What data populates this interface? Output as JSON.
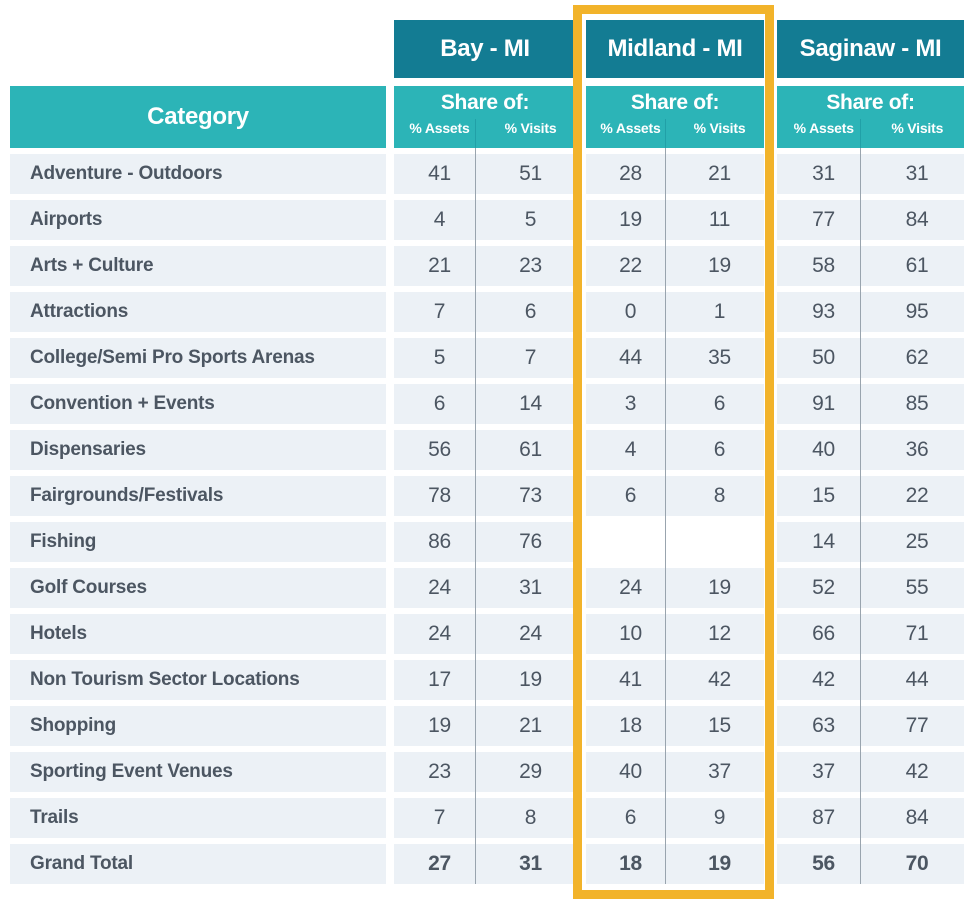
{
  "table": {
    "category_header": "Category",
    "regions": [
      {
        "name": "Bay - MI",
        "share_label": "Share of:",
        "sub_columns": [
          "% Assets",
          "% Visits"
        ]
      },
      {
        "name": "Midland - MI",
        "share_label": "Share of:",
        "sub_columns": [
          "% Assets",
          "% Visits"
        ]
      },
      {
        "name": "Saginaw - MI",
        "share_label": "Share of:",
        "sub_columns": [
          "% Assets",
          "% Visits"
        ]
      }
    ],
    "rows": [
      {
        "category": "Adventure - Outdoors",
        "values": [
          41,
          51,
          28,
          21,
          31,
          31
        ]
      },
      {
        "category": "Airports",
        "values": [
          4,
          5,
          19,
          11,
          77,
          84
        ]
      },
      {
        "category": "Arts + Culture",
        "values": [
          21,
          23,
          22,
          19,
          58,
          61
        ]
      },
      {
        "category": "Attractions",
        "values": [
          7,
          6,
          0,
          1,
          93,
          95
        ]
      },
      {
        "category": "College/Semi Pro Sports Arenas",
        "values": [
          5,
          7,
          44,
          35,
          50,
          62
        ]
      },
      {
        "category": "Convention + Events",
        "values": [
          6,
          14,
          3,
          6,
          91,
          85
        ]
      },
      {
        "category": "Dispensaries",
        "values": [
          56,
          61,
          4,
          6,
          40,
          36
        ]
      },
      {
        "category": "Fairgrounds/Festivals",
        "values": [
          78,
          73,
          6,
          8,
          15,
          22
        ]
      },
      {
        "category": "Fishing",
        "values": [
          86,
          76,
          null,
          null,
          14,
          25
        ]
      },
      {
        "category": "Golf Courses",
        "values": [
          24,
          31,
          24,
          19,
          52,
          55
        ]
      },
      {
        "category": "Hotels",
        "values": [
          24,
          24,
          10,
          12,
          66,
          71
        ]
      },
      {
        "category": "Non Tourism Sector Locations",
        "values": [
          17,
          19,
          41,
          42,
          42,
          44
        ]
      },
      {
        "category": "Shopping",
        "values": [
          19,
          21,
          18,
          15,
          63,
          77
        ]
      },
      {
        "category": "Sporting Event Venues",
        "values": [
          23,
          29,
          40,
          37,
          37,
          42
        ]
      },
      {
        "category": "Trails",
        "values": [
          7,
          8,
          6,
          9,
          87,
          84
        ]
      }
    ],
    "grand_total": {
      "category": "Grand Total",
      "values": [
        27,
        31,
        18,
        19,
        56,
        70
      ]
    }
  },
  "highlight": {
    "highlighted_region": "Midland - MI",
    "border_color": "#F2B32A"
  },
  "colors": {
    "region_header_bg": "#137C93",
    "subheader_bg": "#2CB4B7",
    "row_bg": "#ECF1F6",
    "text": "#4C5662",
    "divider": "#99A4AE",
    "highlight_border": "#F2B32A"
  },
  "chart_data": {
    "type": "table",
    "title": "",
    "columns": [
      "Category",
      "Bay - MI % Assets",
      "Bay - MI % Visits",
      "Midland - MI % Assets",
      "Midland - MI % Visits",
      "Saginaw - MI % Assets",
      "Saginaw - MI % Visits"
    ],
    "rows": [
      [
        "Adventure - Outdoors",
        41,
        51,
        28,
        21,
        31,
        31
      ],
      [
        "Airports",
        4,
        5,
        19,
        11,
        77,
        84
      ],
      [
        "Arts + Culture",
        21,
        23,
        22,
        19,
        58,
        61
      ],
      [
        "Attractions",
        7,
        6,
        0,
        1,
        93,
        95
      ],
      [
        "College/Semi Pro Sports Arenas",
        5,
        7,
        44,
        35,
        50,
        62
      ],
      [
        "Convention + Events",
        6,
        14,
        3,
        6,
        91,
        85
      ],
      [
        "Dispensaries",
        56,
        61,
        4,
        6,
        40,
        36
      ],
      [
        "Fairgrounds/Festivals",
        78,
        73,
        6,
        8,
        15,
        22
      ],
      [
        "Fishing",
        86,
        76,
        null,
        null,
        14,
        25
      ],
      [
        "Golf Courses",
        24,
        31,
        24,
        19,
        52,
        55
      ],
      [
        "Hotels",
        24,
        24,
        10,
        12,
        66,
        71
      ],
      [
        "Non Tourism Sector Locations",
        17,
        19,
        41,
        42,
        42,
        44
      ],
      [
        "Shopping",
        19,
        21,
        18,
        15,
        63,
        77
      ],
      [
        "Sporting Event Venues",
        23,
        29,
        40,
        37,
        37,
        42
      ],
      [
        "Trails",
        7,
        8,
        6,
        9,
        87,
        84
      ],
      [
        "Grand Total",
        27,
        31,
        18,
        19,
        56,
        70
      ]
    ],
    "legend_position": "none",
    "grid": false
  }
}
